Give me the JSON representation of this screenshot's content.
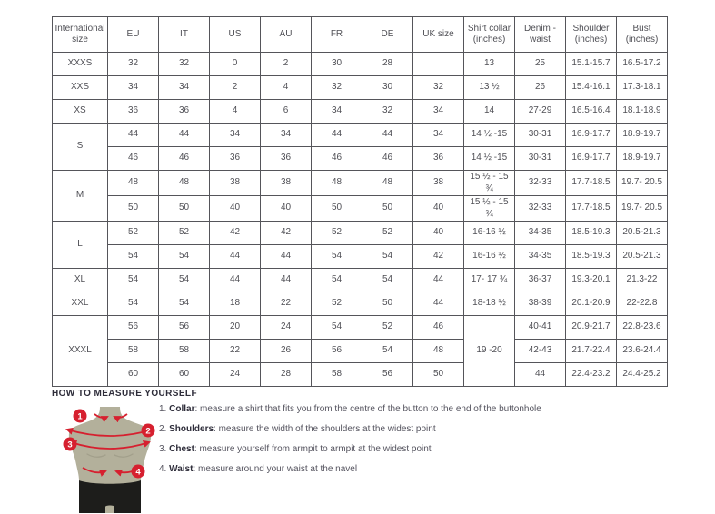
{
  "colors": {
    "accent_red": "#d6202f",
    "mannequin_body": "#b3b09b",
    "mannequin_shorts": "#1d1d1b",
    "table_border": "#55555a",
    "text": "#4f4f55"
  },
  "table": {
    "headers": [
      "International size",
      "EU",
      "IT",
      "US",
      "AU",
      "FR",
      "DE",
      "UK size",
      "Shirt collar (inches)",
      "Denim - waist",
      "Shoulder (inches)",
      "Bust (inches)"
    ],
    "groups": [
      {
        "size": "XXXS",
        "collar_span": 1,
        "rows": [
          [
            "32",
            "32",
            "0",
            "2",
            "30",
            "28",
            "",
            "13",
            "25",
            "15.1-15.7",
            "16.5-17.2"
          ]
        ]
      },
      {
        "size": "XXS",
        "collar_span": 1,
        "rows": [
          [
            "34",
            "34",
            "2",
            "4",
            "32",
            "30",
            "32",
            "13 ½",
            "26",
            "15.4-16.1",
            "17.3-18.1"
          ]
        ]
      },
      {
        "size": "XS",
        "collar_span": 1,
        "rows": [
          [
            "36",
            "36",
            "4",
            "6",
            "34",
            "32",
            "34",
            "14",
            "27-29",
            "16.5-16.4",
            "18.1-18.9"
          ]
        ]
      },
      {
        "size": "S",
        "collar_span": 1,
        "rows": [
          [
            "44",
            "44",
            "34",
            "34",
            "44",
            "44",
            "34",
            "14 ½ -15",
            "30-31",
            "16.9-17.7",
            "18.9-19.7"
          ],
          [
            "46",
            "46",
            "36",
            "36",
            "46",
            "46",
            "36",
            "14 ½ -15",
            "30-31",
            "16.9-17.7",
            "18.9-19.7"
          ]
        ]
      },
      {
        "size": "M",
        "collar_span": 1,
        "rows": [
          [
            "48",
            "48",
            "38",
            "38",
            "48",
            "48",
            "38",
            "15 ½ - 15 ¾",
            "32-33",
            "17.7-18.5",
            "19.7- 20.5"
          ],
          [
            "50",
            "50",
            "40",
            "40",
            "50",
            "50",
            "40",
            "15 ½ - 15 ¾",
            "32-33",
            "17.7-18.5",
            "19.7- 20.5"
          ]
        ]
      },
      {
        "size": "L",
        "collar_span": 1,
        "rows": [
          [
            "52",
            "52",
            "42",
            "42",
            "52",
            "52",
            "40",
            "16-16 ½",
            "34-35",
            "18.5-19.3",
            "20.5-21.3"
          ],
          [
            "54",
            "54",
            "44",
            "44",
            "54",
            "54",
            "42",
            "16-16 ½",
            "34-35",
            "18.5-19.3",
            "20.5-21.3"
          ]
        ]
      },
      {
        "size": "XL",
        "collar_span": 1,
        "rows": [
          [
            "54",
            "54",
            "44",
            "44",
            "54",
            "54",
            "44",
            "17- 17 ¾",
            "36-37",
            "19.3-20.1",
            "21.3-22"
          ]
        ]
      },
      {
        "size": "XXL",
        "collar_span": 1,
        "rows": [
          [
            "54",
            "54",
            "18",
            "22",
            "52",
            "50",
            "44",
            "18-18 ½",
            "38-39",
            "20.1-20.9",
            "22-22.8"
          ]
        ]
      },
      {
        "size": "XXXL",
        "collar_span": 3,
        "rows": [
          [
            "56",
            "56",
            "20",
            "24",
            "54",
            "52",
            "46",
            "19 -20",
            "40-41",
            "20.9-21.7",
            "22.8-23.6"
          ],
          [
            "58",
            "58",
            "22",
            "26",
            "56",
            "54",
            "48",
            "",
            "42-43",
            "21.7-22.4",
            "23.6-24.4"
          ],
          [
            "60",
            "60",
            "24",
            "28",
            "58",
            "56",
            "50",
            "",
            "44",
            "22.4-23.2",
            "24.4-25.2"
          ]
        ]
      }
    ]
  },
  "measure": {
    "title": "HOW TO MEASURE YOURSELF",
    "items": [
      {
        "num": "1.",
        "term": "Collar",
        "text": "measure a shirt that fits you from the centre of the button to the end of the buttonhole"
      },
      {
        "num": "2.",
        "term": "Shoulders",
        "text": "measure the width of the shoulders at the widest point"
      },
      {
        "num": "3.",
        "term": "Chest",
        "text": "measure yourself from armpit to armpit at the widest point"
      },
      {
        "num": "4.",
        "term": "Waist",
        "text": "measure around your waist at the navel"
      }
    ],
    "figure_markers": [
      "1",
      "2",
      "3",
      "4"
    ]
  }
}
